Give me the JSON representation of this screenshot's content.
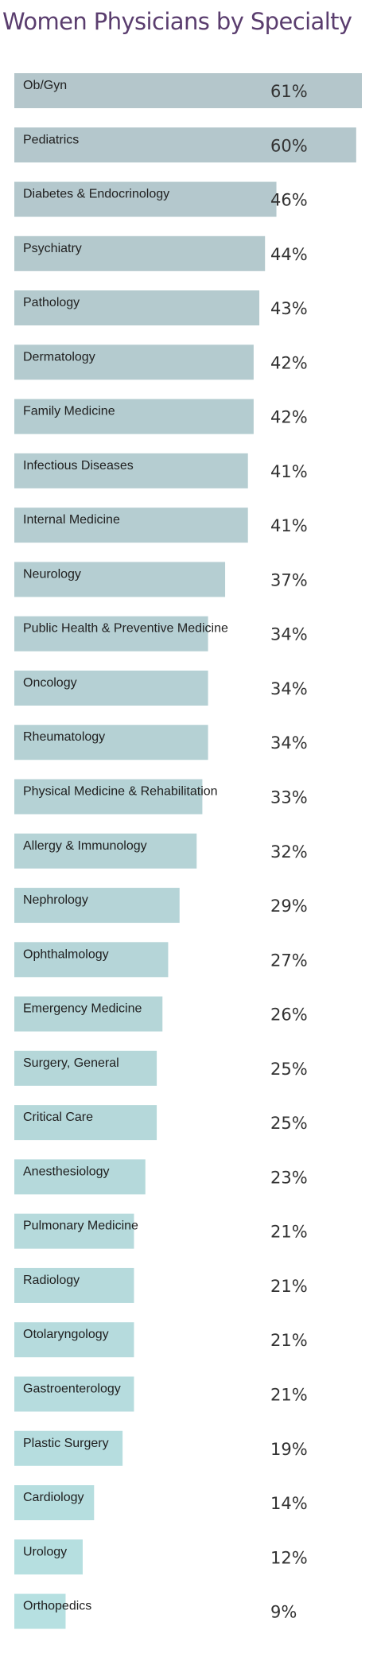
{
  "chart_data": {
    "type": "bar",
    "orientation": "horizontal",
    "title": "Women Physicians by Specialty",
    "categories": [
      "Ob/Gyn",
      "Pediatrics",
      "Diabetes & Endocrinology",
      "Psychiatry",
      "Pathology",
      "Dermatology",
      "Family Medicine",
      "Infectious Diseases",
      "Internal Medicine",
      "Neurology",
      "Public Health & Preventive Medicine",
      "Oncology",
      "Rheumatology",
      "Physical Medicine & Rehabilitation",
      "Allergy & Immunology",
      "Nephrology",
      "Ophthalmology",
      "Emergency Medicine",
      "Surgery, General",
      "Critical Care",
      "Anesthesiology",
      "Pulmonary Medicine",
      "Radiology",
      "Otolaryngology",
      "Gastroenterology",
      "Plastic Surgery",
      "Cardiology",
      "Urology",
      "Orthopedics"
    ],
    "values": [
      61,
      60,
      46,
      44,
      43,
      42,
      42,
      41,
      41,
      37,
      34,
      34,
      34,
      33,
      32,
      29,
      27,
      26,
      25,
      25,
      23,
      21,
      21,
      21,
      21,
      19,
      14,
      12,
      9
    ],
    "value_labels": [
      "61%",
      "60%",
      "46%",
      "44%",
      "43%",
      "42%",
      "42%",
      "41%",
      "41%",
      "37%",
      "34%",
      "34%",
      "34%",
      "33%",
      "32%",
      "29%",
      "27%",
      "26%",
      "25%",
      "25%",
      "23%",
      "21%",
      "21%",
      "21%",
      "21%",
      "19%",
      "14%",
      "12%",
      "9%"
    ],
    "value_unit": "%",
    "grid": false,
    "legend": "none"
  },
  "colors": {
    "title": "#5a3d6e",
    "bar_top": "#b4c6cb",
    "bar_bottom": "#b6e0e1",
    "category_text": "#1f1f1f",
    "value_text": "#333333"
  }
}
